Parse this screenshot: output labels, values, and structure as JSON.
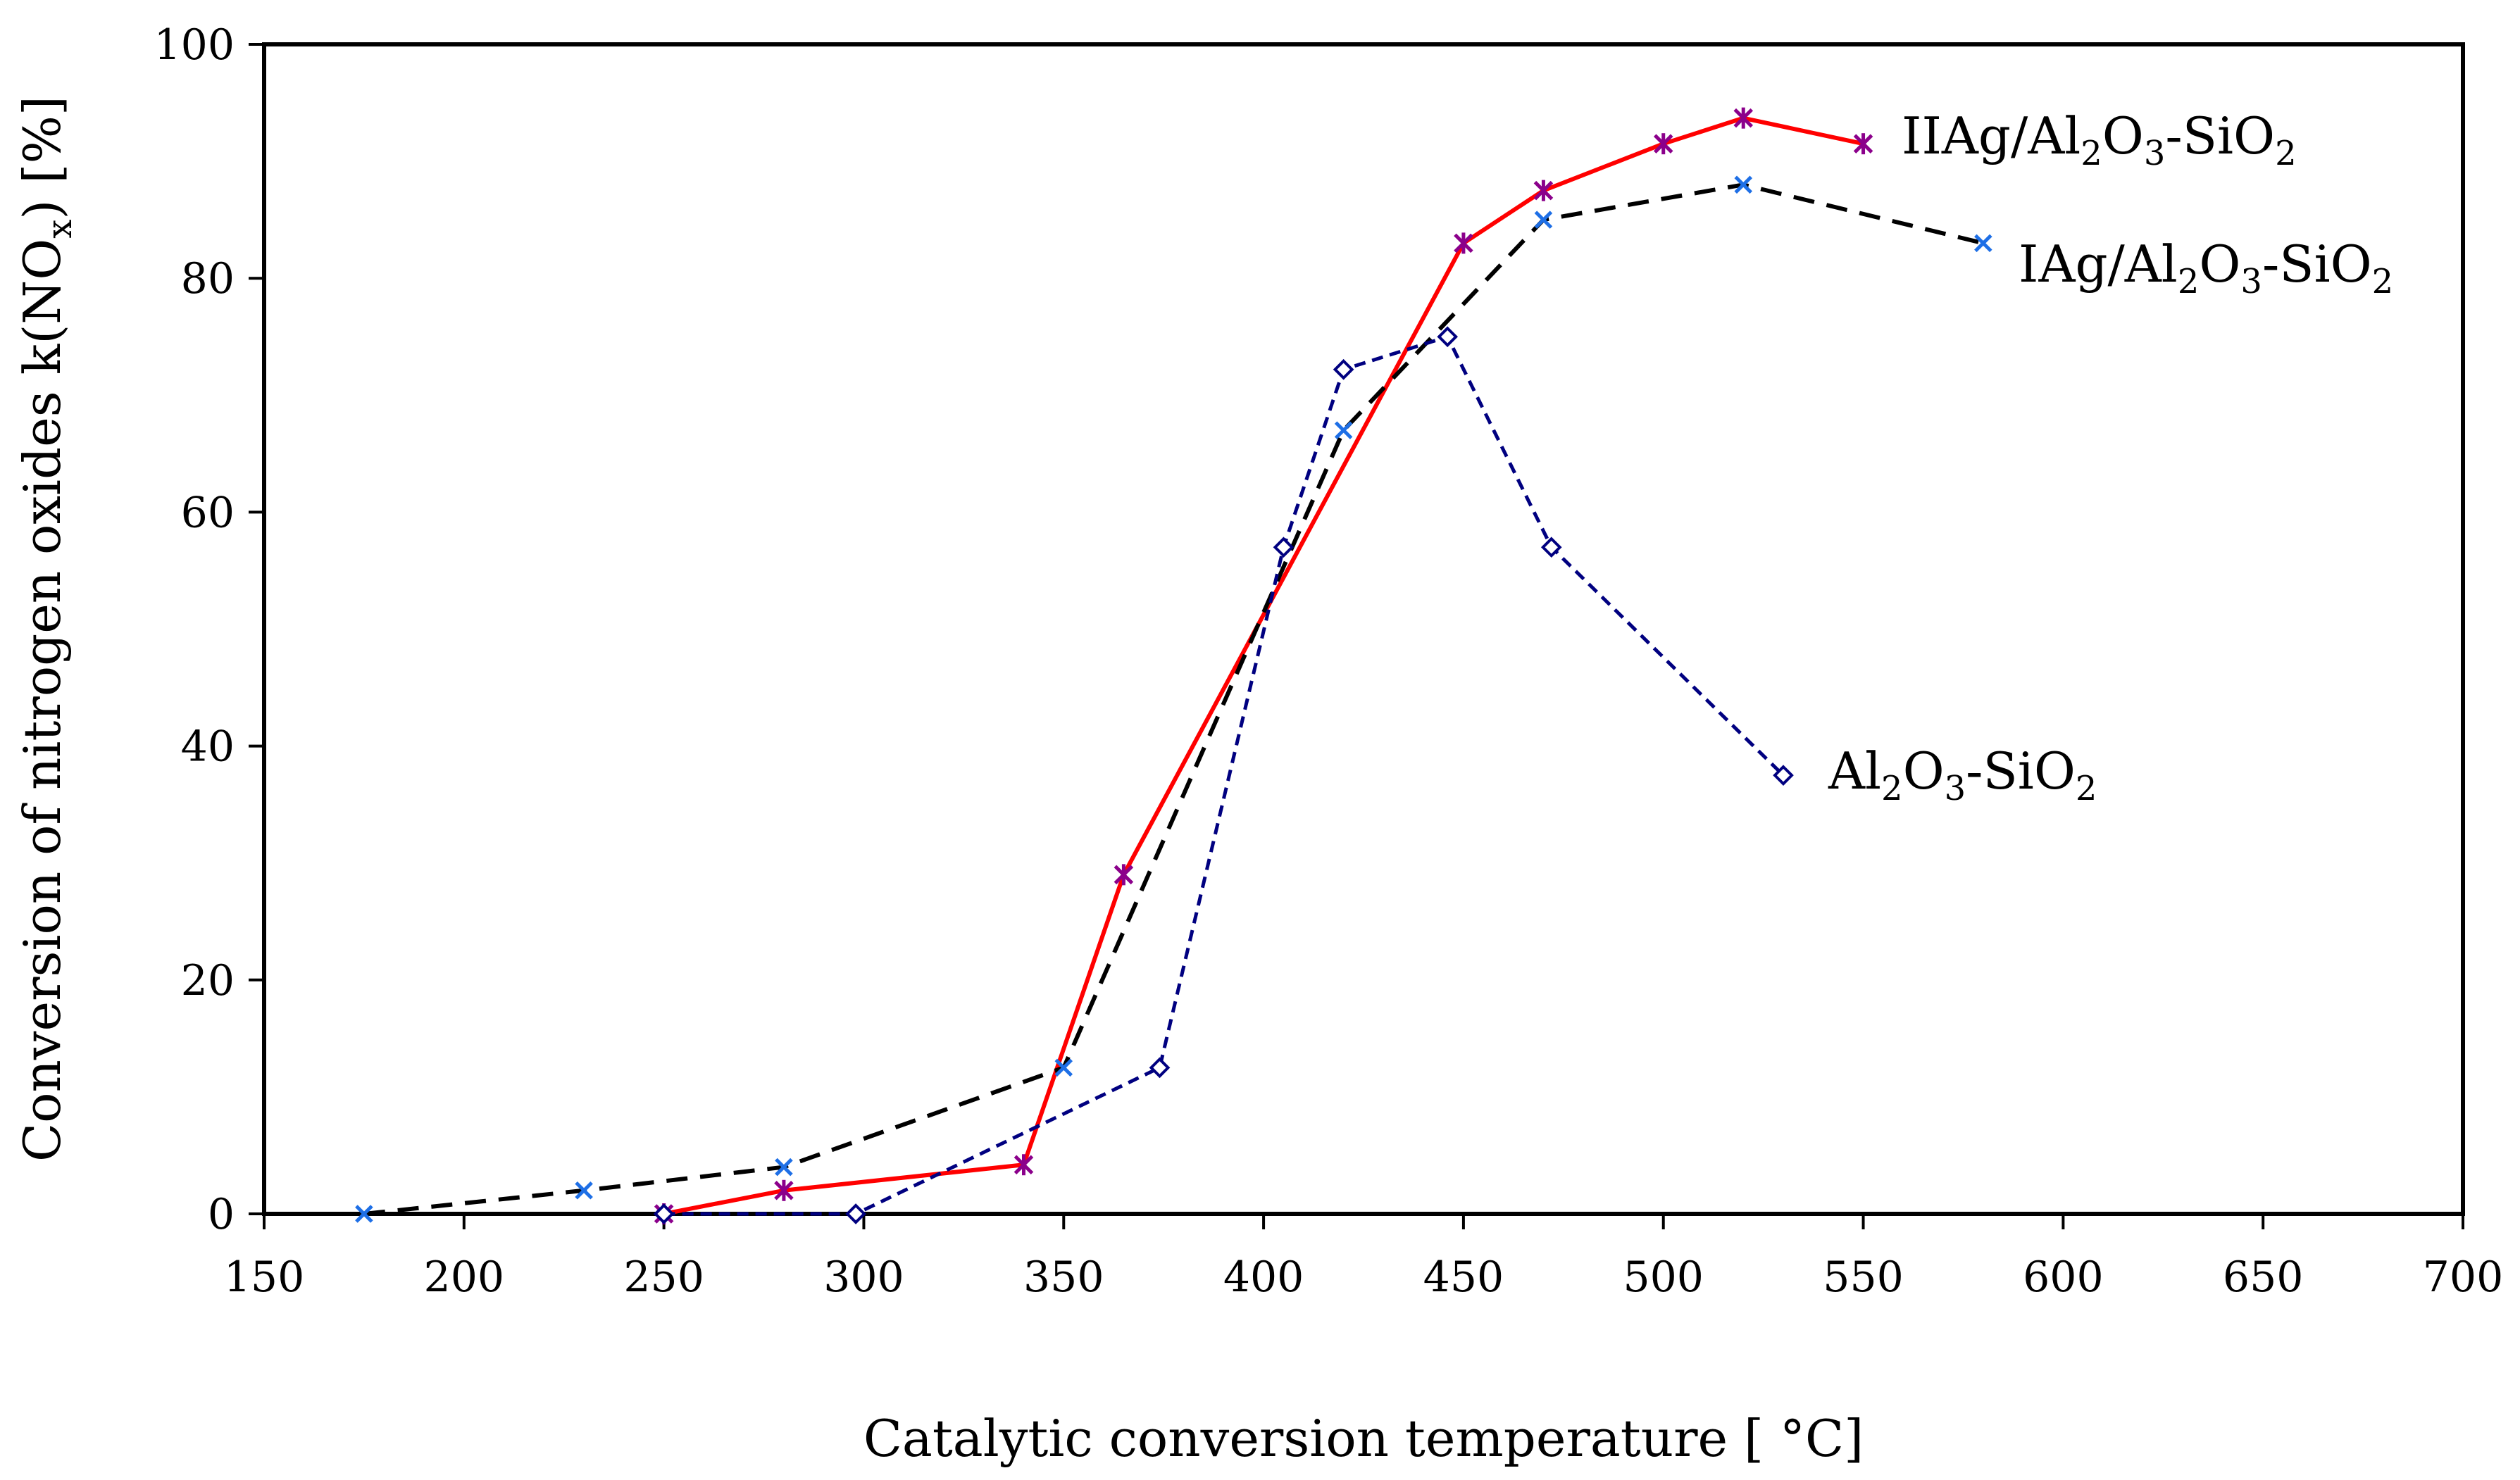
{
  "chart_data": {
    "type": "line",
    "title": "",
    "xlabel": "Catalytic conversion temperature [ °C]",
    "ylabel": {
      "prefix": "Conversion of nitrogen oxides k(NO",
      "sub": "x",
      "suffix": ") [%]"
    },
    "xlim": [
      150,
      700
    ],
    "ylim": [
      0,
      100
    ],
    "x_ticks": [
      "150",
      "200",
      "250",
      "300",
      "350",
      "400",
      "450",
      "500",
      "550",
      "600",
      "650",
      "700"
    ],
    "y_ticks": [
      "0",
      "20",
      "40",
      "60",
      "80",
      "100"
    ],
    "grid": false,
    "legend": "direct labels at series ends",
    "series": [
      {
        "key": "IIAg",
        "name": "IIAg/Al2O3-SiO2",
        "label_parts": [
          {
            "t": "IIAg/Al"
          },
          {
            "t": "2",
            "sub": true
          },
          {
            "t": "O"
          },
          {
            "t": "3",
            "sub": true
          },
          {
            "t": "-SiO"
          },
          {
            "t": "2",
            "sub": true
          }
        ],
        "color": "#ff0000",
        "marker_color": "#8b008b",
        "line_style": "solid",
        "marker": "asterisk",
        "x": [
          250,
          280,
          340,
          365,
          450,
          470,
          500,
          520,
          550
        ],
        "y": [
          0,
          2,
          4.2,
          29,
          83,
          87.5,
          91.5,
          93.7,
          91.5
        ]
      },
      {
        "key": "IAg",
        "name": "IAg/Al2O3-SiO2",
        "label_parts": [
          {
            "t": "IAg/Al"
          },
          {
            "t": "2",
            "sub": true
          },
          {
            "t": "O"
          },
          {
            "t": "3",
            "sub": true
          },
          {
            "t": "-SiO"
          },
          {
            "t": "2",
            "sub": true
          }
        ],
        "color": "#000000",
        "marker_color": "#1e6fe6",
        "line_style": "dashed",
        "marker": "x",
        "x": [
          175,
          230,
          280,
          350,
          420,
          470,
          520,
          580
        ],
        "y": [
          0,
          2,
          4,
          12.5,
          67,
          85,
          88,
          83
        ]
      },
      {
        "key": "AlSi",
        "name": "Al2O3-SiO2",
        "label_parts": [
          {
            "t": "Al"
          },
          {
            "t": "2",
            "sub": true
          },
          {
            "t": "O"
          },
          {
            "t": "3",
            "sub": true
          },
          {
            "t": "-SiO"
          },
          {
            "t": "2",
            "sub": true
          }
        ],
        "color": "#000080",
        "marker_color": "#000080",
        "line_style": "dotted",
        "marker": "diamond",
        "x": [
          250,
          298,
          374,
          405,
          420,
          446,
          472,
          530
        ],
        "y": [
          0,
          0,
          12.5,
          57,
          72.2,
          75,
          57,
          37.5
        ]
      }
    ]
  }
}
